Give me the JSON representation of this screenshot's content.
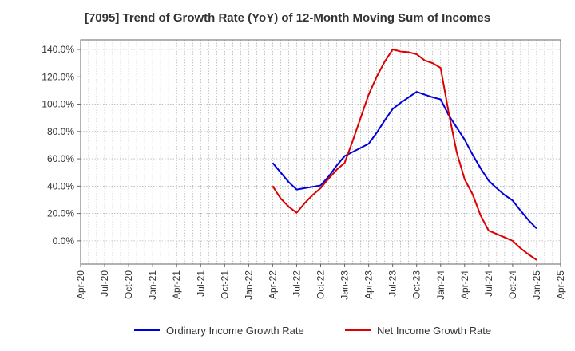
{
  "chart_data": {
    "type": "line",
    "title": "[7095]  Trend of Growth Rate (YoY) of 12-Month Moving Sum of Incomes",
    "xlabel": "",
    "ylabel": "",
    "x_ticks": [
      "Apr-20",
      "Jul-20",
      "Oct-20",
      "Jan-21",
      "Apr-21",
      "Jul-21",
      "Oct-21",
      "Jan-22",
      "Apr-22",
      "Jul-22",
      "Oct-22",
      "Jan-23",
      "Apr-23",
      "Jul-23",
      "Oct-23",
      "Jan-24",
      "Apr-24",
      "Jul-24",
      "Oct-24",
      "Jan-25",
      "Apr-25"
    ],
    "y_ticks": [
      "140.0%",
      "120.0%",
      "100.0%",
      "80.0%",
      "60.0%",
      "40.0%",
      "20.0%",
      "0.0%"
    ],
    "y_tick_values": [
      140,
      120,
      100,
      80,
      60,
      40,
      20,
      0
    ],
    "ylim": [
      -17,
      147
    ],
    "grid": true,
    "legend_position": "bottom",
    "series": [
      {
        "name": "Ordinary Income Growth Rate",
        "color": "#0000dd",
        "x": [
          "Apr-22",
          "May-22",
          "Jun-22",
          "Jul-22",
          "Aug-22",
          "Sep-22",
          "Oct-22",
          "Nov-22",
          "Dec-22",
          "Jan-23",
          "Feb-23",
          "Mar-23",
          "Apr-23",
          "May-23",
          "Jun-23",
          "Jul-23",
          "Aug-23",
          "Sep-23",
          "Oct-23",
          "Nov-23",
          "Dec-23",
          "Jan-24",
          "Feb-24",
          "Mar-24",
          "Apr-24",
          "May-24",
          "Jun-24",
          "Jul-24",
          "Aug-24",
          "Sep-24",
          "Oct-24",
          "Nov-24",
          "Dec-24",
          "Jan-25"
        ],
        "values": [
          57,
          50,
          43,
          37.5,
          38.5,
          39.5,
          40.5,
          47,
          55,
          62,
          65,
          68,
          71,
          79,
          88,
          96.5,
          101,
          105,
          109,
          107,
          105,
          103.5,
          92,
          83,
          74,
          63,
          53,
          44,
          38.5,
          33.5,
          29.5,
          22,
          15,
          9
        ]
      },
      {
        "name": "Net Income Growth Rate",
        "color": "#dd0000",
        "x": [
          "Apr-22",
          "May-22",
          "Jun-22",
          "Jul-22",
          "Aug-22",
          "Sep-22",
          "Oct-22",
          "Nov-22",
          "Dec-22",
          "Jan-23",
          "Feb-23",
          "Mar-23",
          "Apr-23",
          "May-23",
          "Jun-23",
          "Jul-23",
          "Aug-23",
          "Sep-23",
          "Oct-23",
          "Nov-23",
          "Dec-23",
          "Jan-24",
          "Feb-24",
          "Mar-24",
          "Apr-24",
          "May-24",
          "Jun-24",
          "Jul-24",
          "Aug-24",
          "Sep-24",
          "Oct-24",
          "Nov-24",
          "Dec-24",
          "Jan-25"
        ],
        "values": [
          40,
          31,
          25,
          20.5,
          27.5,
          33.5,
          38.5,
          45.5,
          52,
          57,
          73,
          90,
          107,
          120,
          131,
          140,
          138.5,
          138,
          136.5,
          132,
          130,
          126.5,
          94,
          65,
          45,
          34,
          18.5,
          7.5,
          5,
          2.5,
          0,
          -5.5,
          -10,
          -14
        ]
      }
    ]
  }
}
